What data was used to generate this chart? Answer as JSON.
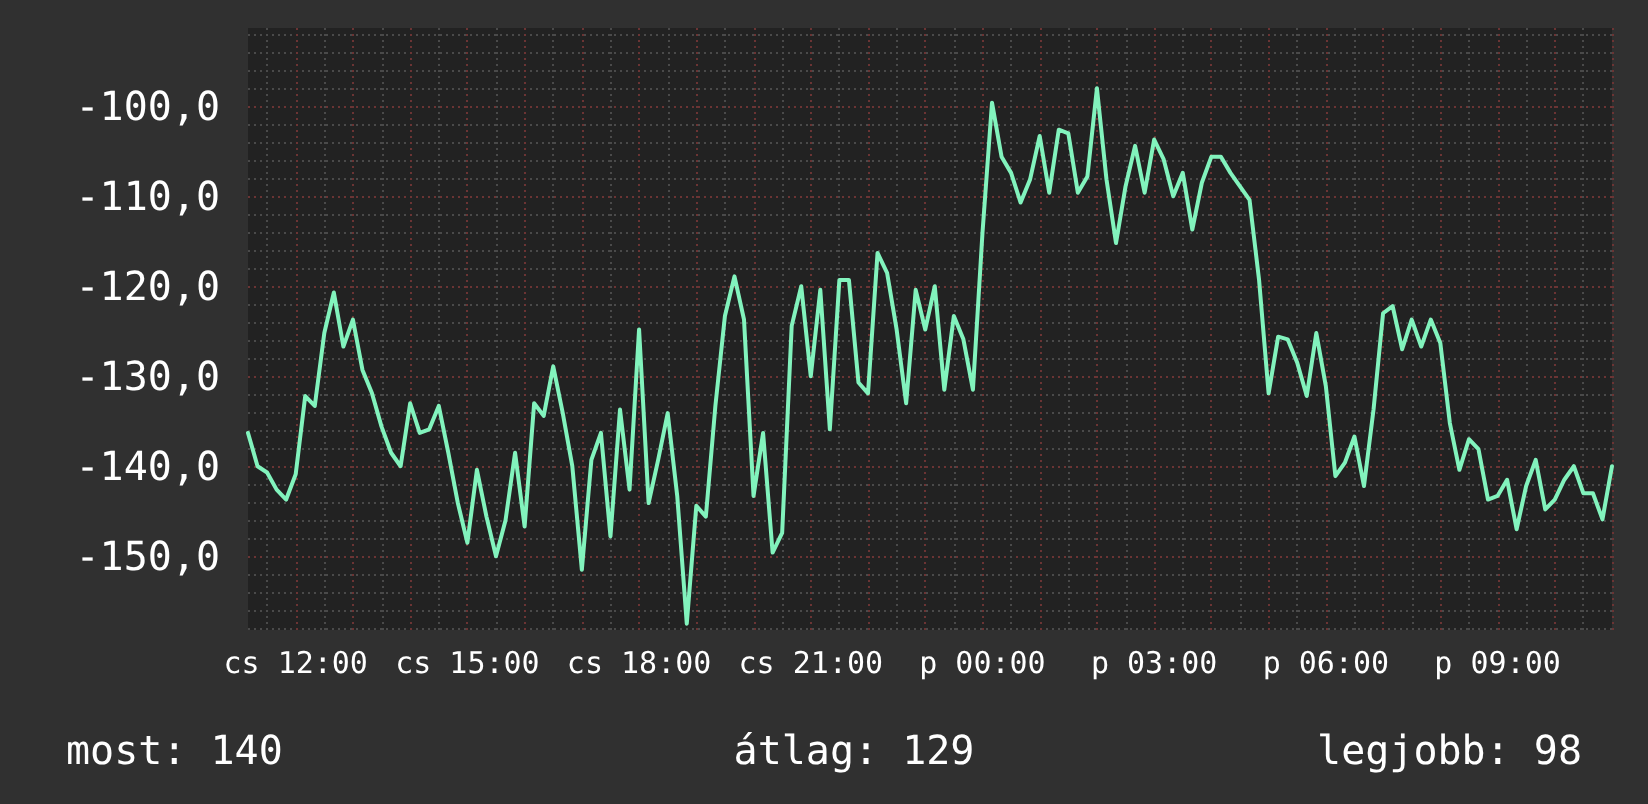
{
  "chart_data": {
    "type": "line",
    "color": "#82f3bd",
    "marker": "none",
    "line_style": "solid",
    "grid": true,
    "categories": [
      null,
      null,
      null,
      null,
      null,
      "cs 12:00",
      null,
      null,
      null,
      null,
      null,
      null,
      null,
      null,
      null,
      null,
      null,
      null,
      null,
      null,
      null,
      null,
      null,
      "cs 15:00",
      null,
      null,
      null,
      null,
      null,
      null,
      null,
      null,
      null,
      null,
      null,
      null,
      null,
      null,
      null,
      null,
      null,
      "cs 18:00",
      null,
      null,
      null,
      null,
      null,
      null,
      null,
      null,
      null,
      null,
      null,
      null,
      null,
      null,
      null,
      null,
      null,
      "cs 21:00",
      null,
      null,
      null,
      null,
      null,
      null,
      null,
      null,
      null,
      null,
      null,
      null,
      null,
      null,
      null,
      null,
      null,
      "p 00:00",
      null,
      null,
      null,
      null,
      null,
      null,
      null,
      null,
      null,
      null,
      null,
      null,
      null,
      null,
      null,
      null,
      null,
      "p 03:00",
      null,
      null,
      null,
      null,
      null,
      null,
      null,
      null,
      null,
      null,
      null,
      null,
      null,
      null,
      null,
      null,
      null,
      "p 06:00",
      null,
      null,
      null,
      null,
      null,
      null,
      null,
      null,
      null,
      null,
      null,
      null,
      null,
      null,
      null,
      null,
      null,
      "p 09:00",
      null,
      null,
      null,
      null,
      null,
      null,
      null,
      null,
      null,
      null,
      null,
      null
    ],
    "ylim": [
      -158.2,
      -91.3
    ],
    "yticks": [
      {
        "value": -150,
        "label": "-150,0"
      },
      {
        "value": -140,
        "label": "-140,0"
      },
      {
        "value": -130,
        "label": "-130,0"
      },
      {
        "value": -120,
        "label": "-120,0"
      },
      {
        "value": -110,
        "label": "-110,0"
      },
      {
        "value": -100,
        "label": "-100,0"
      }
    ],
    "annotations": [
      "most: 140",
      "átlag: 129",
      "legjobb: 98"
    ],
    "values": [
      -136.3,
      -140,
      -140.7,
      -142.6,
      -143.7,
      -140.9,
      -132.2,
      -133.3,
      -125.2,
      -120.7,
      -126.7,
      -123.7,
      -129.3,
      -131.9,
      -135.6,
      -138.5,
      -140,
      -133,
      -136.3,
      -135.9,
      -133.3,
      -138.5,
      -144.1,
      -148.5,
      -140.4,
      -145.6,
      -150,
      -146,
      -138.5,
      -146.7,
      -133,
      -134.4,
      -128.9,
      -134.1,
      -140,
      -151.5,
      -139.3,
      -136.3,
      -147.8,
      -133.7,
      -142.6,
      -124.8,
      -144.1,
      -139.3,
      -134.1,
      -143.3,
      -157.5,
      -144.4,
      -145.6,
      -133.3,
      -123.3,
      -118.9,
      -123.7,
      -143.3,
      -136.3,
      -149.6,
      -147.4,
      -124.4,
      -120,
      -130,
      -120.4,
      -135.9,
      -119.3,
      -119.3,
      -130.7,
      -131.9,
      -116.3,
      -118.5,
      -124.8,
      -133,
      -120.4,
      -124.8,
      -120,
      -131.5,
      -123.3,
      -125.9,
      -131.5,
      -114.1,
      -99.6,
      -105.6,
      -107.4,
      -110.7,
      -108.1,
      -103.3,
      -109.6,
      -102.6,
      -103,
      -109.6,
      -107.8,
      -98,
      -108.1,
      -115.2,
      -108.9,
      -104.4,
      -109.6,
      -103.7,
      -105.9,
      -110,
      -107.4,
      -113.7,
      -108.5,
      -105.6,
      -105.6,
      -107.4,
      -108.9,
      -110.4,
      -119.3,
      -131.9,
      -125.6,
      -125.9,
      -128.5,
      -132.2,
      -125.2,
      -131.1,
      -141.1,
      -139.6,
      -136.7,
      -142.2,
      -133.7,
      -123,
      -122.2,
      -127,
      -123.7,
      -126.7,
      -123.7,
      -126.3,
      -135.2,
      -140.4,
      -137,
      -138.1,
      -143.7,
      -143.3,
      -141.5,
      -147,
      -142.2,
      -139.3,
      -144.8,
      -143.7,
      -141.5,
      -140,
      -143,
      -143,
      -145.9,
      -140
    ]
  }
}
